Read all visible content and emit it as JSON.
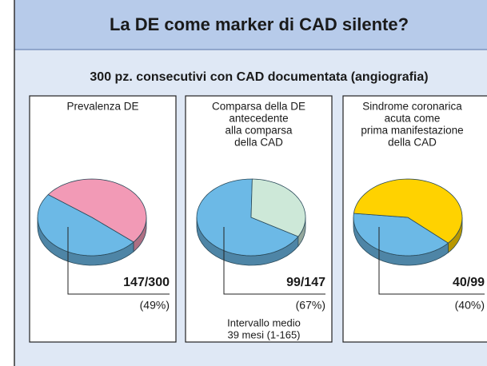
{
  "header": {
    "title": "La DE come marker di CAD silente?",
    "subtitle": "300 pz. consecutivi con CAD documentata (angiografia)"
  },
  "chart_data": [
    {
      "type": "pie",
      "title": [
        "Prevalenza DE"
      ],
      "values": [
        49,
        51
      ],
      "colors": [
        "#6cb9e6",
        "#f29ab6"
      ],
      "value_labels": [
        "(49%)",
        null
      ],
      "annotation": "147/300"
    },
    {
      "type": "pie",
      "title": [
        "Comparsa della DE",
        "antecedente",
        "alla comparsa",
        "della CAD"
      ],
      "values": [
        67,
        33
      ],
      "colors": [
        "#6cb9e6",
        "#cde8d8"
      ],
      "value_labels": [
        "(67%)",
        null
      ],
      "annotation": "99/147",
      "note": [
        "Intervallo medio",
        "39 mesi (1-165)"
      ]
    },
    {
      "type": "pie",
      "title": [
        "Sindrome coronarica",
        "acuta come",
        "prima manifestazione",
        "della CAD"
      ],
      "values": [
        40,
        60
      ],
      "colors": [
        "#6cb9e6",
        "#ffd200"
      ],
      "value_labels": [
        "(40%)",
        null
      ],
      "annotation": "40/99"
    }
  ]
}
